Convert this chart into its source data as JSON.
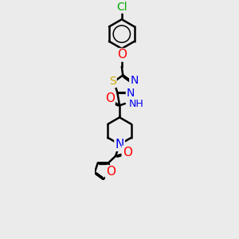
{
  "background_color": "#ebebeb",
  "atom_colors": {
    "C": "#000000",
    "N": "#0000ee",
    "O": "#ff0000",
    "S": "#ccaa00",
    "Cl": "#00aa00",
    "H": "#008888"
  },
  "bond_color": "#000000",
  "bond_width": 1.8,
  "dbo": 0.06,
  "font_size": 10,
  "fig_size": [
    3.0,
    3.0
  ],
  "dpi": 100
}
